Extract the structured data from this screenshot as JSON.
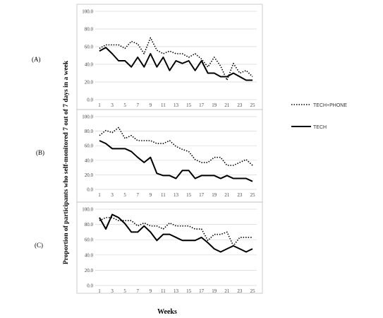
{
  "chart_data": [
    {
      "type": "line",
      "panel_label": "(A)",
      "x": [
        1,
        2,
        3,
        4,
        5,
        6,
        7,
        8,
        9,
        10,
        11,
        12,
        13,
        14,
        15,
        16,
        17,
        18,
        19,
        20,
        21,
        22,
        23,
        24,
        25
      ],
      "xticks": [
        1,
        3,
        5,
        7,
        9,
        11,
        13,
        15,
        17,
        19,
        21,
        23,
        25
      ],
      "ylim": [
        0,
        100
      ],
      "yticks": [
        "0.0",
        "20.0",
        "40.0",
        "60.0",
        "80.0",
        "100.0"
      ],
      "series": [
        {
          "name": "TECH+PHONE",
          "style": "dotted",
          "values": [
            58,
            62,
            62,
            62,
            58,
            66,
            63,
            52,
            70,
            56,
            52,
            55,
            52,
            52,
            48,
            52,
            46,
            37,
            48,
            38,
            22,
            41,
            30,
            33,
            26
          ]
        },
        {
          "name": "TECH",
          "style": "solid",
          "values": [
            55,
            59,
            52,
            44,
            44,
            37,
            48,
            37,
            52,
            37,
            48,
            33,
            44,
            41,
            44,
            33,
            44,
            30,
            30,
            26,
            26,
            30,
            26,
            22,
            22
          ]
        }
      ]
    },
    {
      "type": "line",
      "panel_label": "(B)",
      "x": [
        1,
        2,
        3,
        4,
        5,
        6,
        7,
        8,
        9,
        10,
        11,
        12,
        13,
        14,
        15,
        16,
        17,
        18,
        19,
        20,
        21,
        22,
        23,
        24,
        25
      ],
      "xticks": [
        1,
        3,
        5,
        7,
        9,
        11,
        13,
        15,
        17,
        19,
        21,
        23,
        25
      ],
      "ylim": [
        0,
        100
      ],
      "yticks": [
        "0.0",
        "20.0",
        "40.0",
        "60.0",
        "80.0",
        "100.0"
      ],
      "series": [
        {
          "name": "TECH+PHONE",
          "style": "dotted",
          "values": [
            74,
            81,
            78,
            85,
            70,
            74,
            67,
            67,
            67,
            63,
            63,
            67,
            59,
            55,
            52,
            41,
            37,
            37,
            44,
            44,
            33,
            33,
            37,
            41,
            33
          ]
        },
        {
          "name": "TECH",
          "style": "solid",
          "values": [
            67,
            63,
            56,
            56,
            56,
            52,
            44,
            37,
            44,
            22,
            19,
            19,
            15,
            26,
            26,
            15,
            19,
            19,
            19,
            15,
            19,
            15,
            15,
            15,
            11
          ]
        }
      ]
    },
    {
      "type": "line",
      "panel_label": "(C)",
      "x": [
        1,
        2,
        3,
        4,
        5,
        6,
        7,
        8,
        9,
        10,
        11,
        12,
        13,
        14,
        15,
        16,
        17,
        18,
        19,
        20,
        21,
        22,
        23,
        24,
        25
      ],
      "xticks": [
        1,
        3,
        5,
        7,
        9,
        11,
        13,
        15,
        17,
        19,
        21,
        23,
        25
      ],
      "ylim": [
        0,
        100
      ],
      "yticks": [
        "0.0",
        "20.0",
        "40.0",
        "60.0",
        "80.0",
        "100.0"
      ],
      "series": [
        {
          "name": "TECH+PHONE",
          "style": "dotted",
          "values": [
            85,
            89,
            89,
            85,
            85,
            85,
            78,
            82,
            78,
            78,
            74,
            82,
            78,
            78,
            78,
            74,
            74,
            59,
            67,
            67,
            70,
            52,
            63,
            63,
            63
          ]
        },
        {
          "name": "TECH",
          "style": "solid",
          "values": [
            89,
            74,
            93,
            89,
            81,
            70,
            70,
            78,
            70,
            59,
            67,
            67,
            63,
            59,
            59,
            59,
            63,
            56,
            48,
            44,
            48,
            52,
            48,
            44,
            48
          ]
        }
      ]
    }
  ],
  "ylabel": "Proportion of participants who self-monitored 7 out of 7 days in a week",
  "xlabel": "Weeks",
  "legend": {
    "placement": "right",
    "items": [
      {
        "label": "TECH+PHONE",
        "style": "dotted"
      },
      {
        "label": "TECH",
        "style": "solid"
      }
    ]
  },
  "colors": {
    "line": "#000000",
    "grid": "#d9d9d9",
    "frame": "#bfbfbf"
  }
}
